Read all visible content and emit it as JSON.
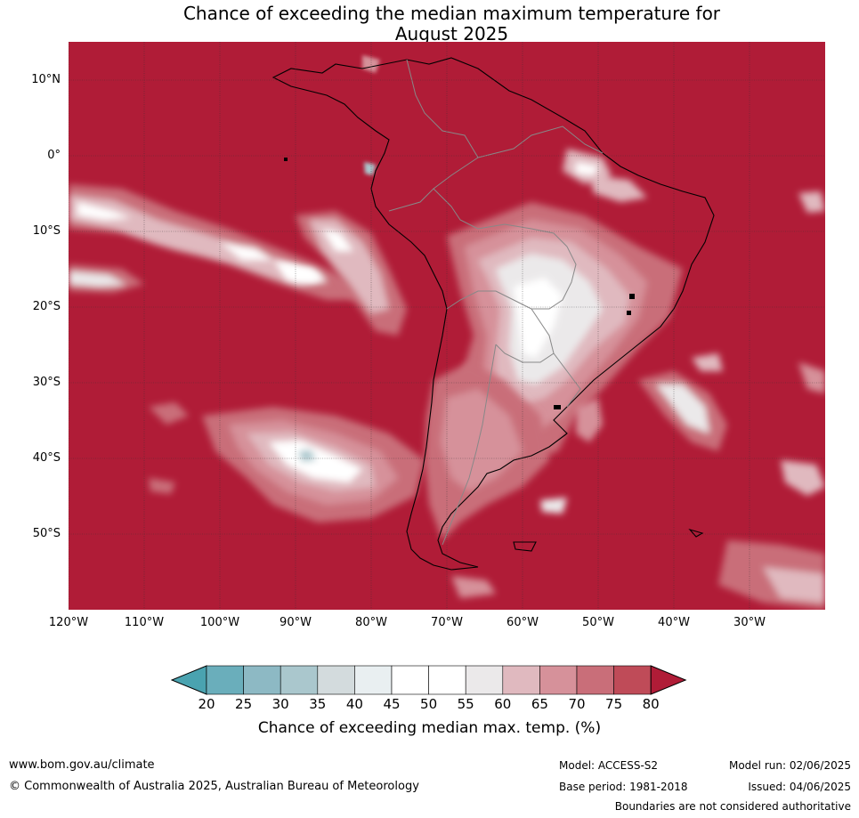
{
  "title_line1": "Chance of exceeding the median maximum temperature for",
  "title_line2": "August 2025",
  "map": {
    "lat_labels": [
      "10°N",
      "0°",
      "10°S",
      "20°S",
      "30°S",
      "40°S",
      "50°S"
    ],
    "lon_labels": [
      "120°W",
      "110°W",
      "100°W",
      "90°W",
      "80°W",
      "70°W",
      "60°W",
      "50°W",
      "40°W",
      "30°W"
    ],
    "region": "South America",
    "background_color": "#b01c37"
  },
  "colorbar": {
    "ticks": [
      "20",
      "25",
      "30",
      "35",
      "40",
      "45",
      "50",
      "55",
      "60",
      "65",
      "70",
      "75",
      "80"
    ],
    "colors": [
      "#4aa3b0",
      "#6aaebb",
      "#8db9c4",
      "#aac7cd",
      "#d3dbdd",
      "#e9eff1",
      "#ffffff",
      "#ffffff",
      "#ebe9ea",
      "#e0b9bf",
      "#d6919a",
      "#c96e79",
      "#bf4b58",
      "#b01c37"
    ],
    "label": "Chance of exceeding median max. temp. (%)"
  },
  "footer": {
    "url": "www.bom.gov.au/climate",
    "copyright": "© Commonwealth of Australia 2025, Australian Bureau of Meteorology",
    "model": "Model: ACCESS-S2",
    "base_period": "Base period: 1981-2018",
    "model_run": "Model run: 02/06/2025",
    "issued": "Issued: 04/06/2025",
    "disclaimer": "Boundaries are not considered authoritative"
  }
}
